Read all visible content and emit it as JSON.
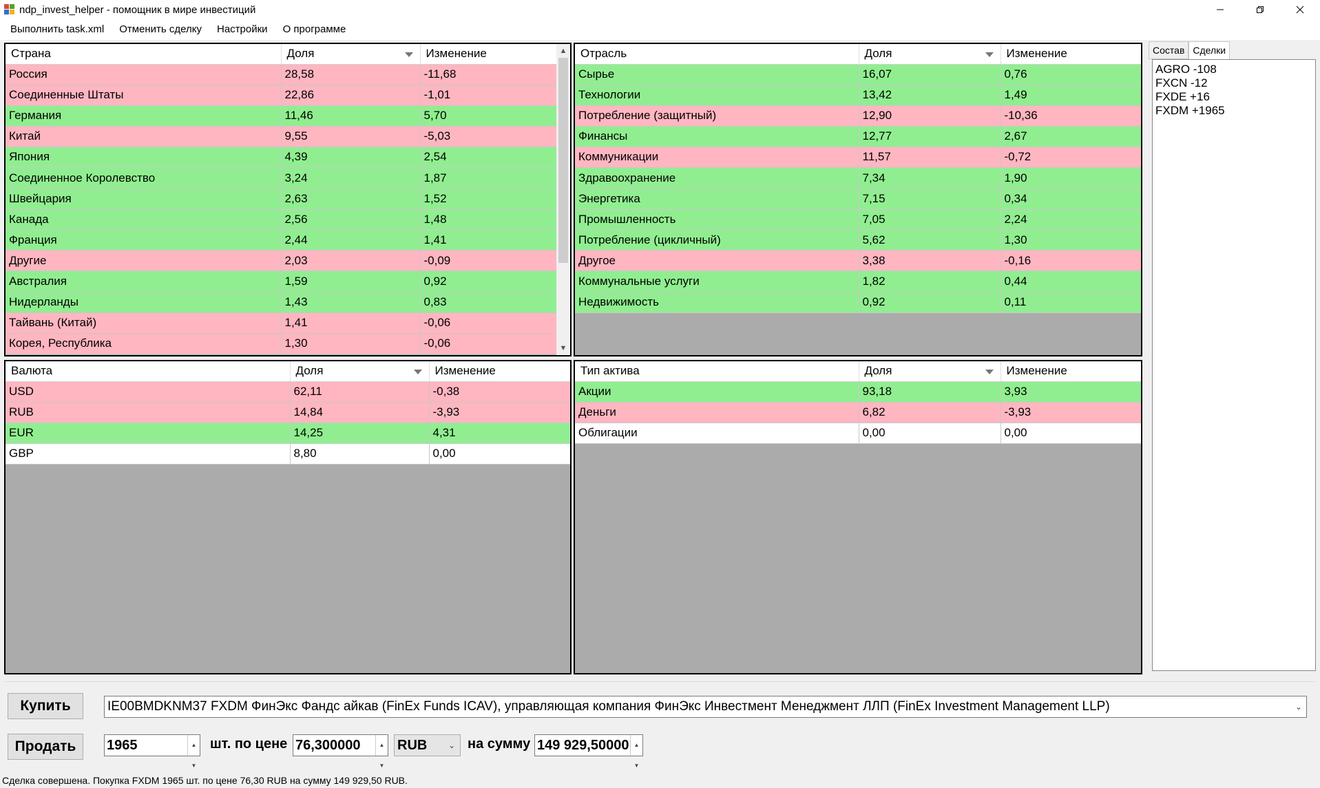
{
  "window": {
    "title": "ndp_invest_helper - помощник в мире инвестиций"
  },
  "menu": [
    "Выполнить task.xml",
    "Отменить сделку",
    "Настройки",
    "О программе"
  ],
  "country_grid": {
    "headers": [
      "Страна",
      "Доля",
      "Изменение"
    ],
    "rows": [
      {
        "name": "Россия",
        "share": "28,58",
        "change": "-11,68",
        "state": "neg"
      },
      {
        "name": "Соединенные Штаты",
        "share": "22,86",
        "change": "-1,01",
        "state": "neg"
      },
      {
        "name": "Германия",
        "share": "11,46",
        "change": "5,70",
        "state": "pos"
      },
      {
        "name": "Китай",
        "share": "9,55",
        "change": "-5,03",
        "state": "neg"
      },
      {
        "name": "Япония",
        "share": "4,39",
        "change": "2,54",
        "state": "pos"
      },
      {
        "name": "Соединенное Королевство",
        "share": "3,24",
        "change": "1,87",
        "state": "pos"
      },
      {
        "name": "Швейцария",
        "share": "2,63",
        "change": "1,52",
        "state": "pos"
      },
      {
        "name": "Канада",
        "share": "2,56",
        "change": "1,48",
        "state": "pos"
      },
      {
        "name": "Франция",
        "share": "2,44",
        "change": "1,41",
        "state": "pos"
      },
      {
        "name": "Другие",
        "share": "2,03",
        "change": "-0,09",
        "state": "neg"
      },
      {
        "name": "Австралия",
        "share": "1,59",
        "change": "0,92",
        "state": "pos"
      },
      {
        "name": "Нидерланды",
        "share": "1,43",
        "change": "0,83",
        "state": "pos"
      },
      {
        "name": "Тайвань (Китай)",
        "share": "1,41",
        "change": "-0,06",
        "state": "neg"
      },
      {
        "name": "Корея, Республика",
        "share": "1,30",
        "change": "-0,06",
        "state": "neg"
      }
    ]
  },
  "sector_grid": {
    "headers": [
      "Отрасль",
      "Доля",
      "Изменение"
    ],
    "rows": [
      {
        "name": "Сырье",
        "share": "16,07",
        "change": "0,76",
        "state": "pos"
      },
      {
        "name": "Технологии",
        "share": "13,42",
        "change": "1,49",
        "state": "pos"
      },
      {
        "name": "Потребление (защитный)",
        "share": "12,90",
        "change": "-10,36",
        "state": "neg"
      },
      {
        "name": "Финансы",
        "share": "12,77",
        "change": "2,67",
        "state": "pos"
      },
      {
        "name": "Коммуникации",
        "share": "11,57",
        "change": "-0,72",
        "state": "neg"
      },
      {
        "name": "Здравоохранение",
        "share": "7,34",
        "change": "1,90",
        "state": "pos"
      },
      {
        "name": "Энергетика",
        "share": "7,15",
        "change": "0,34",
        "state": "pos"
      },
      {
        "name": "Промышленность",
        "share": "7,05",
        "change": "2,24",
        "state": "pos"
      },
      {
        "name": "Потребление (цикличный)",
        "share": "5,62",
        "change": "1,30",
        "state": "pos"
      },
      {
        "name": "Другое",
        "share": "3,38",
        "change": "-0,16",
        "state": "neg"
      },
      {
        "name": "Коммунальные услуги",
        "share": "1,82",
        "change": "0,44",
        "state": "pos"
      },
      {
        "name": "Недвижимость",
        "share": "0,92",
        "change": "0,11",
        "state": "pos"
      }
    ]
  },
  "currency_grid": {
    "headers": [
      "Валюта",
      "Доля",
      "Изменение"
    ],
    "rows": [
      {
        "name": "USD",
        "share": "62,11",
        "change": "-0,38",
        "state": "neg"
      },
      {
        "name": "RUB",
        "share": "14,84",
        "change": "-3,93",
        "state": "neg"
      },
      {
        "name": "EUR",
        "share": "14,25",
        "change": "4,31",
        "state": "pos"
      },
      {
        "name": "GBP",
        "share": "8,80",
        "change": "0,00",
        "state": "neu"
      }
    ]
  },
  "asset_grid": {
    "headers": [
      "Тип актива",
      "Доля",
      "Изменение"
    ],
    "rows": [
      {
        "name": "Акции",
        "share": "93,18",
        "change": "3,93",
        "state": "pos"
      },
      {
        "name": "Деньги",
        "share": "6,82",
        "change": "-3,93",
        "state": "neg"
      },
      {
        "name": "Облигации",
        "share": "0,00",
        "change": "0,00",
        "state": "neu"
      }
    ]
  },
  "tabs": [
    "Состав",
    "Сделки"
  ],
  "deals": [
    "AGRO -108",
    "FXCN -12",
    "FXDE +16",
    "FXDM +1965"
  ],
  "trade": {
    "buy_label": "Купить",
    "sell_label": "Продать",
    "instrument": "IE00BMDKNM37 FXDM ФинЭкс Фандс айкав (FinEx Funds ICAV), управляющая компания ФинЭкс Инвестмент Менеджмент ЛЛП (FinEx Investment Management LLP)",
    "quantity": "1965",
    "qty_label": "шт. по цене",
    "price": "76,300000",
    "currency": "RUB",
    "sum_label": "на сумму",
    "sum": "149 929,50000"
  },
  "status": "Сделка совершена. Покупка FXDM 1965 шт. по цене 76,30 RUB на сумму 149 929,50 RUB.",
  "colors": {
    "positive": "#90ee90",
    "negative": "#ffb6c1",
    "neutral": "#ffffff",
    "empty": "#ababab"
  }
}
